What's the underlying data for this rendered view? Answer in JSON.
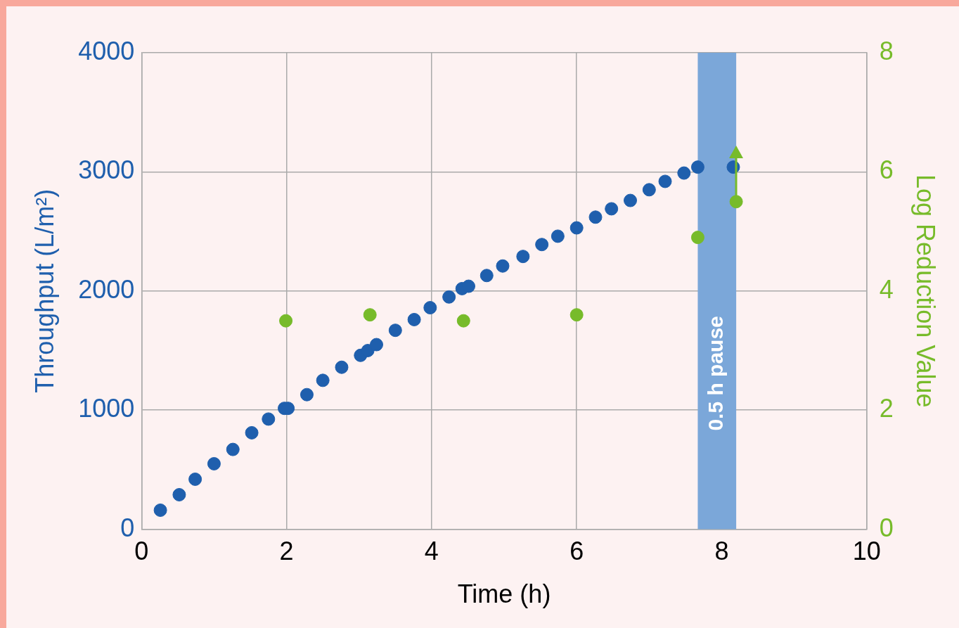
{
  "chart_data": {
    "type": "scatter",
    "xlabel": "Time (h)",
    "ylabel": "Throughput (L/m²)",
    "y2label": "Log Reduction Value",
    "xlim": [
      0,
      10
    ],
    "xticks": [
      0,
      2,
      4,
      6,
      8,
      10
    ],
    "ylim": [
      0,
      4000
    ],
    "yticks": [
      0,
      1000,
      2000,
      3000,
      4000
    ],
    "y2lim": [
      0,
      8
    ],
    "y2ticks": [
      0,
      2,
      4,
      6,
      8
    ],
    "grid": true,
    "marker": "circle",
    "bands": [
      {
        "axis": "x",
        "from": 7.67,
        "to": 8.2,
        "label": "0.5 h pause",
        "color": "#7ba7d9"
      }
    ],
    "series": [
      {
        "type": "scatter",
        "color": "#1f5fad",
        "x": [
          0.26,
          0.52,
          0.74,
          1.0,
          1.26,
          1.52,
          1.75,
          1.97,
          2.02,
          2.28,
          2.5,
          2.76,
          3.02,
          3.12,
          3.24,
          3.5,
          3.76,
          3.98,
          4.24,
          4.42,
          4.51,
          4.76,
          4.98,
          5.26,
          5.52,
          5.74,
          6.0,
          6.26,
          6.48,
          6.74,
          7.0,
          7.22,
          7.48,
          7.67,
          8.16
        ],
        "values": [
          160,
          290,
          420,
          550,
          670,
          810,
          925,
          1015,
          1015,
          1130,
          1250,
          1360,
          1460,
          1500,
          1550,
          1670,
          1760,
          1860,
          1950,
          2020,
          2040,
          2130,
          2210,
          2290,
          2390,
          2460,
          2530,
          2620,
          2690,
          2760,
          2850,
          2920,
          2990,
          3040,
          3040
        ]
      },
      {
        "type": "scatter",
        "axis": "y2",
        "color": "#77bb2a",
        "x": [
          1.99,
          3.15,
          4.44,
          6.0,
          7.67,
          8.2
        ],
        "values": [
          3.5,
          3.6,
          3.5,
          3.6,
          4.9,
          5.5
        ]
      }
    ]
  }
}
